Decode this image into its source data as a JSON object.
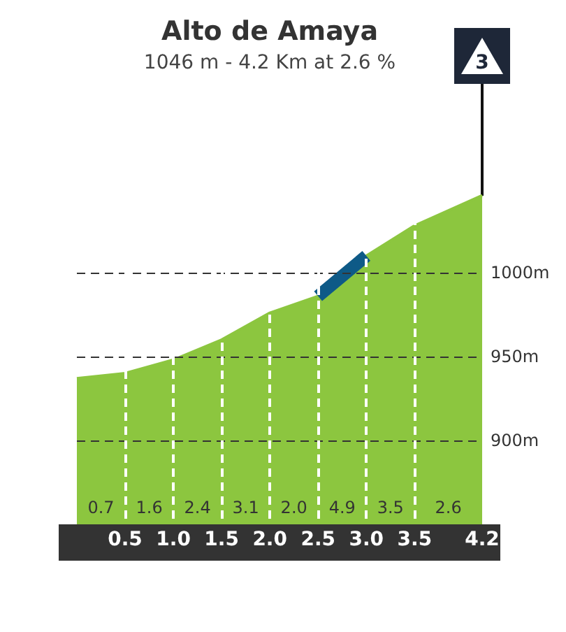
{
  "chart_data": {
    "type": "area",
    "title": "Alto de Amaya",
    "subtitle": "1046 m - 4.2 Km at 2.6 %",
    "x": [
      0,
      0.5,
      1,
      1.5,
      2,
      2.5,
      3,
      3.5,
      4.2
    ],
    "series": [
      {
        "color": "#8cc63f",
        "values": [
          937,
          940,
          948,
          960,
          976,
          986,
          1010,
          1028,
          1046
        ]
      },
      {
        "type": "line",
        "x": [
          2.5,
          3
        ],
        "color": "#0e5a87",
        "values": [
          986,
          1010
        ]
      }
    ],
    "xlim": [
      0,
      4.2
    ],
    "xticks": [
      0.5,
      {
        "value": 1,
        "label": "1.0"
      },
      1.5,
      {
        "value": 2,
        "label": "2.0"
      },
      2.5,
      {
        "value": 3,
        "label": "3.0"
      },
      3.5,
      4.2
    ],
    "ylim": [
      850,
      1050
    ],
    "yticks": [
      {
        "value": 900,
        "label": "900m"
      },
      {
        "value": 950,
        "label": "950m"
      },
      {
        "value": 1000,
        "label": "1000m"
      }
    ],
    "grid": true,
    "annotations": [
      "3",
      "0.7",
      "1.6",
      "2.4",
      "3.1",
      "2.0",
      "4.9",
      "3.5",
      "2.6"
    ]
  }
}
